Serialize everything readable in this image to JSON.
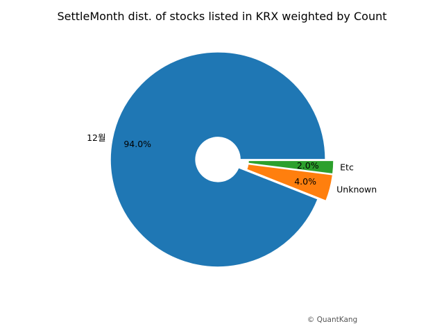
{
  "chart_data": {
    "type": "pie",
    "title": "SettleMonth dist. of stocks listed in KRX weighted by Count",
    "slices": [
      {
        "label": "Etc",
        "value": 2.0,
        "pct_label": "2.0%",
        "color": "#2ca02c"
      },
      {
        "label": "Unknown",
        "value": 4.0,
        "pct_label": "4.0%",
        "color": "#ff7f0e"
      },
      {
        "label": "12월",
        "value": 94.0,
        "pct_label": "94.0%",
        "color": "#1f77b4"
      }
    ],
    "donut": true,
    "start_angle_deg": 0,
    "direction": "clockwise"
  },
  "footer": {
    "credit": "© QuantKang"
  }
}
